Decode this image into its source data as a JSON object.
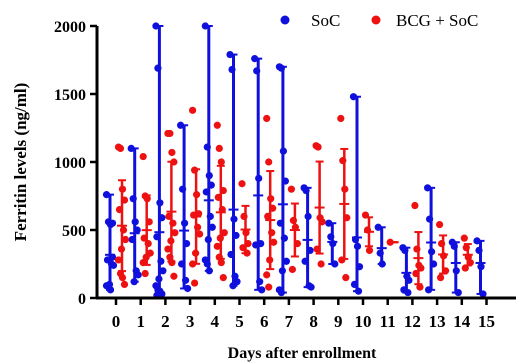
{
  "chart_data": {
    "type": "scatter",
    "xlabel": "Days after enrollment",
    "ylabel": "Ferritin levels (ng/ml)",
    "ylim": [
      0,
      2000
    ],
    "yticks": [
      0,
      500,
      1000,
      1500,
      2000
    ],
    "xticks": [
      0,
      1,
      2,
      3,
      4,
      5,
      6,
      7,
      8,
      9,
      10,
      11,
      12,
      13,
      14,
      15
    ],
    "legend_position": "top-right",
    "colors": {
      "soc": "#1010dd",
      "bcg": "#ee1111"
    },
    "series": [
      {
        "name": "SoC",
        "color": "#1010dd",
        "points": [
          {
            "x": 0,
            "values": [
              760,
              560,
              540,
              300,
              280,
              250,
              240,
              100,
              90,
              80,
              60,
              550
            ]
          },
          {
            "x": 1,
            "values": [
              1100,
              730,
              560,
              500,
              430,
              200,
              170,
              120
            ]
          },
          {
            "x": 2,
            "values": [
              2000,
              1690,
              700,
              590,
              450,
              270,
              200,
              140,
              90,
              60,
              50,
              30,
              20
            ]
          },
          {
            "x": 3,
            "values": [
              1270,
              800,
              550,
              400,
              250,
              130,
              70
            ]
          },
          {
            "x": 4,
            "values": [
              2000,
              1110,
              900,
              830,
              780,
              600,
              520,
              430,
              280,
              250,
              200
            ]
          },
          {
            "x": 5,
            "values": [
              1790,
              1680,
              580,
              460,
              320,
              160,
              120,
              90
            ]
          },
          {
            "x": 6,
            "values": [
              1760,
              1670,
              880,
              400,
              390,
              120,
              60
            ]
          },
          {
            "x": 7,
            "values": [
              1700,
              1690,
              1080,
              860,
              550,
              440,
              270,
              200,
              60,
              40
            ]
          },
          {
            "x": 8,
            "values": [
              810,
              790,
              600,
              350,
              270,
              90,
              80
            ]
          },
          {
            "x": 9,
            "values": [
              550,
              450,
              400,
              250
            ]
          },
          {
            "x": 10,
            "values": [
              1480,
              430,
              380,
              230,
              100,
              50
            ]
          },
          {
            "x": 11,
            "values": [
              520,
              330,
              250
            ]
          },
          {
            "x": 12,
            "values": [
              370,
              350,
              160,
              130,
              60,
              40
            ]
          },
          {
            "x": 13,
            "values": [
              810,
              580,
              340,
              250,
              60
            ]
          },
          {
            "x": 14,
            "values": [
              410,
              380,
              200,
              40
            ]
          },
          {
            "x": 15,
            "values": [
              420,
              350,
              230,
              30
            ]
          }
        ]
      },
      {
        "name": "BCG + SoC",
        "color": "#ee1111",
        "points": [
          {
            "x": 0,
            "values": [
              1110,
              1100,
              800,
              720,
              650,
              500,
              430,
              360,
              280,
              180,
              150,
              100
            ]
          },
          {
            "x": 1,
            "values": [
              1040,
              750,
              730,
              560,
              440,
              400,
              330,
              300,
              260,
              180
            ]
          },
          {
            "x": 2,
            "values": [
              1210,
              1210,
              1070,
              1000,
              600,
              550,
              480,
              420,
              360,
              300,
              260,
              160
            ]
          },
          {
            "x": 3,
            "values": [
              1380,
              940,
              760,
              620,
              610,
              520,
              470,
              330,
              250,
              110
            ]
          },
          {
            "x": 4,
            "values": [
              1270,
              1100,
              1000,
              790,
              740,
              650,
              480,
              440,
              380,
              300,
              260,
              150
            ]
          },
          {
            "x": 5,
            "values": [
              840,
              600,
              480,
              400,
              370,
              330
            ]
          },
          {
            "x": 6,
            "values": [
              1320,
              1000,
              730,
              660,
              600,
              480,
              410,
              280,
              170,
              80
            ]
          },
          {
            "x": 7,
            "values": [
              800,
              570,
              520,
              400,
              210
            ]
          },
          {
            "x": 8,
            "values": [
              1120,
              1110,
              590,
              560,
              360,
              250
            ]
          },
          {
            "x": 9,
            "values": [
              1320,
              1010,
              800,
              590,
              280,
              150
            ]
          },
          {
            "x": 10,
            "values": [
              610,
              500,
              350
            ]
          },
          {
            "x": 11,
            "values": [
              410
            ]
          },
          {
            "x": 12,
            "values": [
              680,
              360,
              240,
              220,
              180,
              80
            ]
          },
          {
            "x": 13,
            "values": [
              540,
              400,
              310,
              200,
              150
            ]
          },
          {
            "x": 14,
            "values": [
              440,
              370,
              300,
              260,
              220
            ]
          }
        ]
      }
    ]
  }
}
